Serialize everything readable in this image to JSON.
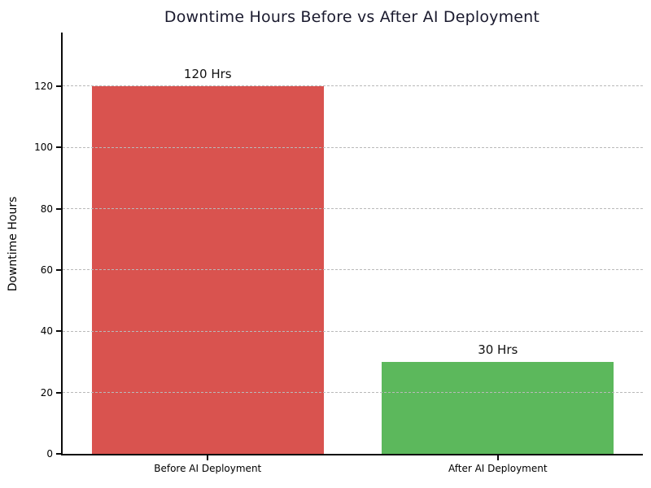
{
  "chart_data": {
    "type": "bar",
    "title": "Downtime Hours Before vs After AI Deployment",
    "categories": [
      "Before AI Deployment",
      "After AI Deployment"
    ],
    "values": [
      120,
      30
    ],
    "bar_value_labels": [
      "120 Hrs",
      "30 Hrs"
    ],
    "bar_colors": [
      "#d9534f",
      "#5cb85c"
    ],
    "xlabel": "",
    "ylabel": "Downtime Hours",
    "ylim": [
      0,
      137.5
    ],
    "yticks": [
      0,
      20,
      40,
      60,
      80,
      100,
      120
    ],
    "grid": "horizontal-dashed",
    "grid_color": "#b9b9b9",
    "legend": "none",
    "title_color": "#1a1a2e",
    "axis_color": "#0a0a0a",
    "background": "#ffffff",
    "bar_width_fraction": 0.8
  }
}
